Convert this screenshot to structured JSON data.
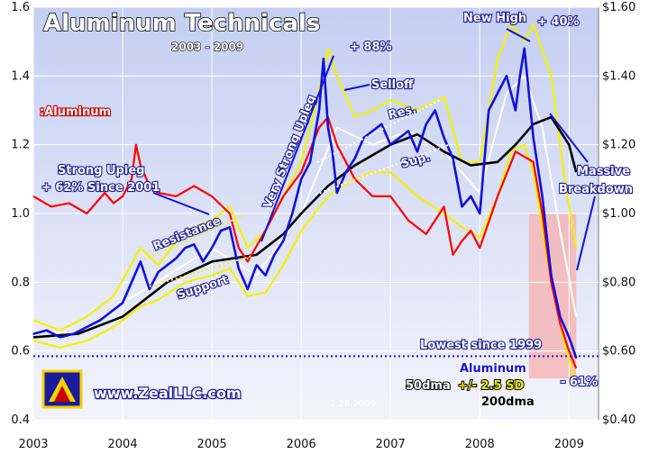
{
  "chart_data": {
    "type": "line",
    "title": "Aluminum Technicals",
    "subtitle": "2003 - 2009",
    "date_stamp": "1.28.2009",
    "website": "www.ZealLLC.com",
    "x_ticks": [
      "2003",
      "2004",
      "2005",
      "2006",
      "2007",
      "2008",
      "2009"
    ],
    "x_range": [
      2003.0,
      2009.33
    ],
    "y_left": {
      "ticks": [
        "0.4",
        "0.6",
        "0.8",
        "1.0",
        "1.2",
        "1.4",
        "1.6"
      ],
      "range": [
        0.4,
        1.6
      ]
    },
    "y_right": {
      "ticks": [
        "$0.40",
        "$0.60",
        "$0.80",
        "$1.00",
        "$1.20",
        "$1.40",
        "$1.60"
      ],
      "range": [
        0.4,
        1.6
      ]
    },
    "legend": {
      "ratio_label": ":Aluminum",
      "aluminum": "Aluminum",
      "dma50": "50dma",
      "band_pm": "+/- 2.5 SD",
      "dma200": "200dma"
    },
    "series": [
      {
        "name": "Aluminum",
        "color": "#1010e0",
        "x": [
          2003.0,
          2003.15,
          2003.3,
          2003.45,
          2003.6,
          2003.75,
          2003.9,
          2004.0,
          2004.1,
          2004.2,
          2004.3,
          2004.4,
          2004.5,
          2004.6,
          2004.7,
          2004.8,
          2004.9,
          2005.0,
          2005.1,
          2005.2,
          2005.3,
          2005.4,
          2005.5,
          2005.6,
          2005.7,
          2005.8,
          2005.9,
          2006.0,
          2006.1,
          2006.2,
          2006.25,
          2006.3,
          2006.35,
          2006.4,
          2006.5,
          2006.6,
          2006.7,
          2006.8,
          2006.9,
          2007.0,
          2007.1,
          2007.2,
          2007.3,
          2007.4,
          2007.5,
          2007.6,
          2007.7,
          2007.8,
          2007.9,
          2008.0,
          2008.1,
          2008.2,
          2008.3,
          2008.4,
          2008.45,
          2008.5,
          2008.6,
          2008.7,
          2008.8,
          2008.9,
          2009.0,
          2009.08
        ],
        "y": [
          0.65,
          0.66,
          0.64,
          0.65,
          0.67,
          0.69,
          0.72,
          0.74,
          0.8,
          0.86,
          0.78,
          0.83,
          0.85,
          0.87,
          0.9,
          0.91,
          0.86,
          0.9,
          0.95,
          0.96,
          0.84,
          0.78,
          0.85,
          0.82,
          0.88,
          0.92,
          1.0,
          1.1,
          1.15,
          1.3,
          1.45,
          1.25,
          1.18,
          1.06,
          1.12,
          1.16,
          1.22,
          1.24,
          1.26,
          1.2,
          1.22,
          1.24,
          1.18,
          1.26,
          1.3,
          1.22,
          1.16,
          1.02,
          1.05,
          1.0,
          1.3,
          1.35,
          1.4,
          1.3,
          1.4,
          1.48,
          1.22,
          1.05,
          0.82,
          0.7,
          0.64,
          0.58
        ]
      },
      {
        "name": "",
        "color": "#ff0000",
        "x": [
          2003.0,
          2003.2,
          2003.4,
          2003.6,
          2003.8,
          2003.9,
          2004.0,
          2004.1,
          2004.15,
          2004.2,
          2004.3,
          2004.4,
          2004.6,
          2004.8,
          2005.0,
          2005.2,
          2005.3,
          2005.4,
          2005.6,
          2005.8,
          2006.0,
          2006.2,
          2006.3,
          2006.4,
          2006.6,
          2006.8,
          2007.0,
          2007.2,
          2007.4,
          2007.6,
          2007.7,
          2007.8,
          2007.9,
          2008.0,
          2008.2,
          2008.4,
          2008.6,
          2008.7,
          2008.8,
          2008.9,
          2009.0,
          2009.08
        ],
        "y": [
          1.05,
          1.02,
          1.03,
          1.0,
          1.06,
          1.03,
          1.05,
          1.1,
          1.2,
          1.14,
          1.08,
          1.06,
          1.05,
          1.08,
          1.05,
          1.0,
          0.9,
          0.86,
          0.95,
          1.05,
          1.12,
          1.25,
          1.28,
          1.2,
          1.1,
          1.05,
          1.05,
          0.98,
          0.94,
          1.02,
          0.88,
          0.92,
          0.95,
          0.9,
          1.05,
          1.18,
          1.15,
          1.0,
          0.8,
          0.68,
          0.6,
          0.55
        ]
      },
      {
        "name": "",
        "color": "#f2f200",
        "x": [
          2003.0,
          2003.3,
          2003.6,
          2003.9,
          2004.2,
          2004.4,
          2004.7,
          2005.0,
          2005.2,
          2005.4,
          2005.6,
          2005.8,
          2006.0,
          2006.15,
          2006.3,
          2006.4,
          2006.6,
          2006.8,
          2007.0,
          2007.3,
          2007.6,
          2007.8,
          2008.0,
          2008.2,
          2008.35,
          2008.5,
          2008.6,
          2008.8,
          2008.95,
          2009.08
        ],
        "y": [
          0.69,
          0.66,
          0.7,
          0.76,
          0.9,
          0.85,
          0.95,
          0.98,
          1.02,
          0.9,
          0.95,
          1.05,
          1.15,
          1.3,
          1.48,
          1.4,
          1.28,
          1.3,
          1.33,
          1.3,
          1.34,
          1.15,
          1.15,
          1.45,
          1.55,
          1.5,
          1.55,
          1.4,
          1.1,
          0.9
        ]
      },
      {
        "name": "",
        "color": "#f2f200",
        "x": [
          2003.0,
          2003.3,
          2003.6,
          2003.9,
          2004.2,
          2004.4,
          2004.7,
          2005.0,
          2005.2,
          2005.4,
          2005.6,
          2005.8,
          2006.0,
          2006.15,
          2006.3,
          2006.4,
          2006.6,
          2006.8,
          2007.0,
          2007.3,
          2007.6,
          2007.8,
          2008.0,
          2008.2,
          2008.35,
          2008.5,
          2008.6,
          2008.8,
          2008.95,
          2009.08
        ],
        "y": [
          0.63,
          0.61,
          0.63,
          0.67,
          0.73,
          0.75,
          0.8,
          0.82,
          0.84,
          0.76,
          0.77,
          0.85,
          0.95,
          1.0,
          1.05,
          1.07,
          1.1,
          1.12,
          1.12,
          1.05,
          1.0,
          0.96,
          0.93,
          1.05,
          1.18,
          1.2,
          1.12,
          0.8,
          0.62,
          0.5
        ]
      },
      {
        "name": "",
        "color": "#ffffff",
        "x": [
          2003.0,
          2003.5,
          2004.0,
          2004.5,
          2005.0,
          2005.5,
          2006.0,
          2006.4,
          2006.8,
          2007.2,
          2007.6,
          2008.0,
          2008.3,
          2008.5,
          2008.7,
          2008.9,
          2009.08
        ],
        "y": [
          0.66,
          0.65,
          0.74,
          0.82,
          0.9,
          0.82,
          1.0,
          1.25,
          1.2,
          1.24,
          1.18,
          1.06,
          1.35,
          1.4,
          1.25,
          0.95,
          0.7
        ]
      },
      {
        "name": "",
        "color": "#000000",
        "x": [
          2003.0,
          2003.5,
          2004.0,
          2004.5,
          2005.0,
          2005.5,
          2005.8,
          2006.0,
          2006.3,
          2006.6,
          2007.0,
          2007.3,
          2007.6,
          2007.9,
          2008.2,
          2008.4,
          2008.6,
          2008.8,
          2009.0,
          2009.08
        ],
        "y": [
          0.64,
          0.65,
          0.7,
          0.8,
          0.86,
          0.88,
          0.94,
          1.0,
          1.08,
          1.14,
          1.2,
          1.23,
          1.18,
          1.14,
          1.15,
          1.2,
          1.26,
          1.28,
          1.2,
          1.12
        ]
      }
    ],
    "lowest_line": {
      "y": 0.585,
      "label": "Lowest since 1999"
    },
    "annotations": {
      "strong_upleg_1": "Strong Upleg",
      "strong_upleg_2": "+ 62% Since 2001",
      "resistance": "Resistance",
      "support": "Support",
      "very_strong_upleg": "Very Strong Upleg",
      "plus88": "+ 88%",
      "selloff": "Selloff",
      "res": "Res.",
      "sup": "Sup.",
      "new_high": "New High",
      "plus40": "+ 40%",
      "massive": "Massive",
      "breakdown": "Breakdown",
      "minus61": "- 61%"
    },
    "colors": {
      "bg_top": "#c9d4f3",
      "bg_bottom": "#f4f4fb",
      "grid": "#ffffff",
      "shade": "#f4b6b6"
    }
  }
}
